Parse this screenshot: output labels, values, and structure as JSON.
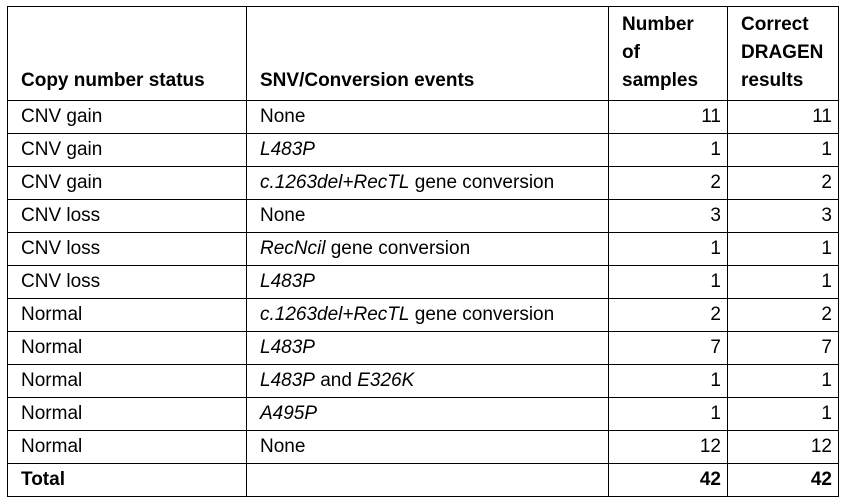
{
  "colors": {
    "border": "#000000",
    "text": "#000000",
    "background": "#ffffff"
  },
  "table": {
    "headers": [
      {
        "id": "copy_number_status",
        "label": "Copy number status",
        "lines": [
          "Copy number status"
        ]
      },
      {
        "id": "snv_events",
        "label": "SNV/Conversion events",
        "lines": [
          "SNV/Conversion events"
        ]
      },
      {
        "id": "num_samples",
        "label": "Number of samples",
        "lines": [
          "Number",
          "of",
          "samples"
        ]
      },
      {
        "id": "correct_dragen",
        "label": "Correct DRAGEN results",
        "lines": [
          "Correct",
          "DRAGEN",
          "results"
        ]
      }
    ],
    "rows": [
      {
        "copy_number_status": "CNV gain",
        "snv_events": [
          {
            "text": "None",
            "italic": false
          }
        ],
        "num_samples": "11",
        "correct_dragen": "11"
      },
      {
        "copy_number_status": "CNV gain",
        "snv_events": [
          {
            "text": "L483P",
            "italic": true
          }
        ],
        "num_samples": "1",
        "correct_dragen": "1"
      },
      {
        "copy_number_status": "CNV gain",
        "snv_events": [
          {
            "text": "c.1263del+RecTL",
            "italic": true
          },
          {
            "text": " gene conversion",
            "italic": false
          }
        ],
        "num_samples": "2",
        "correct_dragen": "2"
      },
      {
        "copy_number_status": "CNV loss",
        "snv_events": [
          {
            "text": "None",
            "italic": false
          }
        ],
        "num_samples": "3",
        "correct_dragen": "3"
      },
      {
        "copy_number_status": "CNV loss",
        "snv_events": [
          {
            "text": "RecNcil",
            "italic": true
          },
          {
            "text": " gene conversion",
            "italic": false
          }
        ],
        "num_samples": "1",
        "correct_dragen": "1"
      },
      {
        "copy_number_status": "CNV loss",
        "snv_events": [
          {
            "text": "L483P",
            "italic": true
          }
        ],
        "num_samples": "1",
        "correct_dragen": "1"
      },
      {
        "copy_number_status": "Normal",
        "snv_events": [
          {
            "text": "c.1263del+RecTL",
            "italic": true
          },
          {
            "text": " gene conversion",
            "italic": false
          }
        ],
        "num_samples": "2",
        "correct_dragen": "2"
      },
      {
        "copy_number_status": "Normal",
        "snv_events": [
          {
            "text": "L483P",
            "italic": true
          }
        ],
        "num_samples": "7",
        "correct_dragen": "7"
      },
      {
        "copy_number_status": "Normal",
        "snv_events": [
          {
            "text": "L483P",
            "italic": true
          },
          {
            "text": " and ",
            "italic": false
          },
          {
            "text": "E326K",
            "italic": true
          }
        ],
        "num_samples": "1",
        "correct_dragen": "1"
      },
      {
        "copy_number_status": "Normal",
        "snv_events": [
          {
            "text": "A495P",
            "italic": true
          }
        ],
        "num_samples": "1",
        "correct_dragen": "1"
      },
      {
        "copy_number_status": "Normal",
        "snv_events": [
          {
            "text": "None",
            "italic": false
          }
        ],
        "num_samples": "12",
        "correct_dragen": "12"
      }
    ],
    "total_row": {
      "label": "Total",
      "snv_events": "",
      "num_samples": "42",
      "correct_dragen": "42"
    }
  }
}
